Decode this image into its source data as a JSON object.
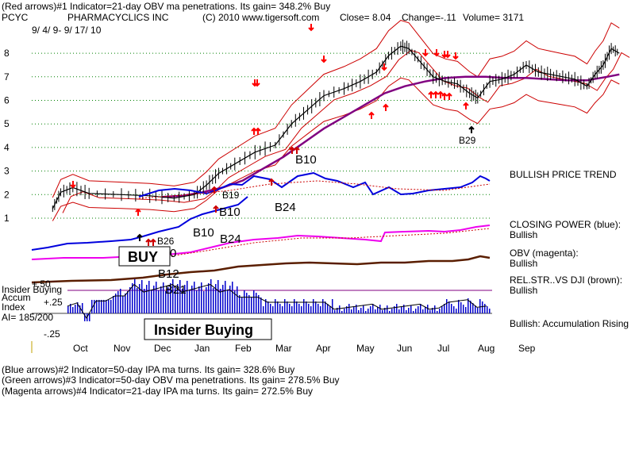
{
  "header": {
    "line1": "(Red arrows)#1 Indicator=21-day OBV ma penetrations. Its gain= 348.2% Buy",
    "symbol": "PCYC",
    "company": "PHARMACYCLICS INC",
    "copyright": "(C) 2010 www.tigersoft.com",
    "close": "Close=  8.04",
    "change": "Change=-.11",
    "volume": "Volume= 3171",
    "date_range": "9/ 4/ 9-  9/ 17/ 10"
  },
  "footer": {
    "line1": "(Blue arrows)#2 Indicator=50-day IPA ma turns. Its gain= 328.6% Buy",
    "line2": "(Green arrows)#3 Indicator=50-day OBV ma penetrations. Its gain= 278.5% Buy",
    "line3": "(Magenta arrows)#4 Indicator=21-day IPA ma turns. Its gain= 272.5% Buy"
  },
  "side_labels": {
    "bullish_trend": "BULLISH PRICE TREND",
    "closing_power_title": "CLOSING POWER (blue):",
    "closing_power_state": "Bullish",
    "obv_title": "OBV (magenta):",
    "obv_state": "Bullish",
    "relstr_title": "REL.STR..VS DJI (brown):",
    "relstr_state": "Bullish",
    "accum_state": "Bullish: Accumulation Rising"
  },
  "left_labels": {
    "insider_buying": "Insider Buying",
    "accum": "Accum",
    "index": "Index",
    "ai": "AI= 185/200",
    "plus50": "+.50",
    "plus25": "+.25",
    "minus25": "-.25"
  },
  "annotations": {
    "buy_box": "BUY",
    "insider_box": "Insider Buying",
    "b10_a": "B10",
    "b19": "B19",
    "b10_b": "B10",
    "b24_a": "B24",
    "b10_c": "B10",
    "b24_b": "B24",
    "b26": "B26",
    "b12": "B12",
    "b21": "B21",
    "b29": "B29",
    "zero": "0"
  },
  "colors": {
    "price_band": "#cc0000",
    "ma50": "#800080",
    "closing_power": "#0000dd",
    "obv": "#ee00ee",
    "relstr": "#5a1e00",
    "accum_bar": "#0000cc",
    "gridline": "#008000",
    "arrow": "#ff0000"
  },
  "chart_data": {
    "type": "line",
    "title": "PHARMACYCLICS INC",
    "x_months": [
      "Oct",
      "Nov",
      "Dec",
      "Jan",
      "Feb",
      "Mar",
      "Apr",
      "May",
      "Jun",
      "Jul",
      "Aug",
      "Sep"
    ],
    "y_ticks": [
      1,
      2,
      3,
      4,
      5,
      6,
      7,
      8
    ],
    "ylim": [
      1,
      8.5
    ],
    "grid": true,
    "series": [
      {
        "name": "Price",
        "values": [
          [
            0.3,
            1.4
          ],
          [
            0.5,
            2.1
          ],
          [
            0.8,
            2.3
          ],
          [
            1.2,
            2.05
          ],
          [
            2.0,
            2.0
          ],
          [
            2.7,
            1.95
          ],
          [
            3.3,
            1.85
          ],
          [
            3.8,
            2.0
          ],
          [
            4.1,
            2.4
          ],
          [
            4.4,
            2.9
          ],
          [
            4.8,
            3.3
          ],
          [
            5.3,
            3.8
          ],
          [
            5.8,
            4.1
          ],
          [
            6.2,
            5.0
          ],
          [
            6.6,
            5.6
          ],
          [
            7.0,
            6.2
          ],
          [
            7.5,
            6.5
          ],
          [
            7.9,
            6.8
          ],
          [
            8.3,
            7.2
          ],
          [
            8.6,
            7.9
          ],
          [
            8.9,
            8.3
          ],
          [
            9.1,
            8.2
          ],
          [
            9.4,
            7.6
          ],
          [
            9.7,
            7.0
          ],
          [
            10.0,
            6.8
          ],
          [
            10.3,
            6.7
          ],
          [
            10.6,
            6.3
          ],
          [
            10.8,
            6.1
          ],
          [
            11.1,
            6.8
          ],
          [
            11.4,
            6.9
          ],
          [
            11.7,
            7.1
          ],
          [
            12.0,
            7.5
          ],
          [
            12.3,
            7.2
          ],
          [
            12.6,
            7.1
          ],
          [
            12.9,
            7.0
          ],
          [
            13.2,
            6.9
          ],
          [
            13.5,
            6.6
          ],
          [
            13.7,
            7.1
          ],
          [
            13.9,
            7.5
          ],
          [
            14.1,
            8.2
          ],
          [
            14.3,
            8.0
          ]
        ]
      },
      {
        "name": "50-day MA",
        "values": [
          [
            3.0,
            1.9
          ],
          [
            3.5,
            1.95
          ],
          [
            4.0,
            2.1
          ],
          [
            4.5,
            2.3
          ],
          [
            5.0,
            2.6
          ],
          [
            5.5,
            3.1
          ],
          [
            6.0,
            3.6
          ],
          [
            6.5,
            4.2
          ],
          [
            7.0,
            4.8
          ],
          [
            7.5,
            5.3
          ],
          [
            8.0,
            5.8
          ],
          [
            8.5,
            6.3
          ],
          [
            9.0,
            6.6
          ],
          [
            9.5,
            6.8
          ],
          [
            10.0,
            6.95
          ],
          [
            10.5,
            7.0
          ],
          [
            11.0,
            7.0
          ],
          [
            11.5,
            6.95
          ],
          [
            12.0,
            6.95
          ],
          [
            12.5,
            6.9
          ],
          [
            13.0,
            6.85
          ],
          [
            13.5,
            6.85
          ],
          [
            14.0,
            7.0
          ],
          [
            14.3,
            7.1
          ]
        ]
      }
    ],
    "annotations": [
      "B10",
      "B19",
      "B10",
      "B24",
      "B10",
      "B24",
      "B26",
      "B12",
      "B21",
      "B29"
    ]
  }
}
